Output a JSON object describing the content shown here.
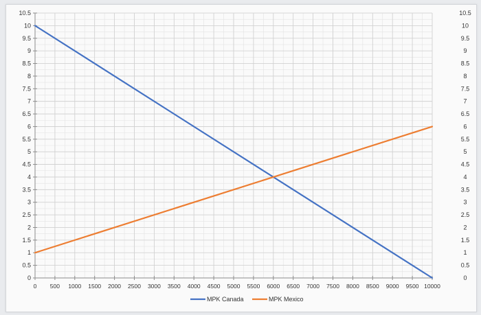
{
  "chart_data": {
    "type": "line",
    "title": "",
    "xlabel": "",
    "ylabel": "",
    "x_ticks": [
      "0",
      "500",
      "1000",
      "1500",
      "2000",
      "2500",
      "3000",
      "3500",
      "4000",
      "4500",
      "5000",
      "5500",
      "6000",
      "6500",
      "7000",
      "7500",
      "8000",
      "8500",
      "9000",
      "9500",
      "10000"
    ],
    "y_ticks": [
      "0",
      "0.5",
      "1",
      "1.5",
      "2",
      "2.5",
      "3",
      "3.5",
      "4",
      "4.5",
      "5",
      "5.5",
      "6",
      "6.5",
      "7",
      "7.5",
      "8",
      "8.5",
      "9",
      "9.5",
      "10",
      "10.5"
    ],
    "xlim": [
      0,
      10000
    ],
    "ylim": [
      0,
      10.5
    ],
    "secondary_ylim": [
      0,
      10.5
    ],
    "grid": true,
    "legend_position": "bottom",
    "series": [
      {
        "name": "MPK Canada",
        "color": "#4472c4",
        "x": [
          0,
          10000
        ],
        "y": [
          10,
          0
        ]
      },
      {
        "name": "MPK Mexico",
        "color": "#ed7d31",
        "x": [
          0,
          10000
        ],
        "y": [
          1,
          6
        ]
      }
    ]
  }
}
